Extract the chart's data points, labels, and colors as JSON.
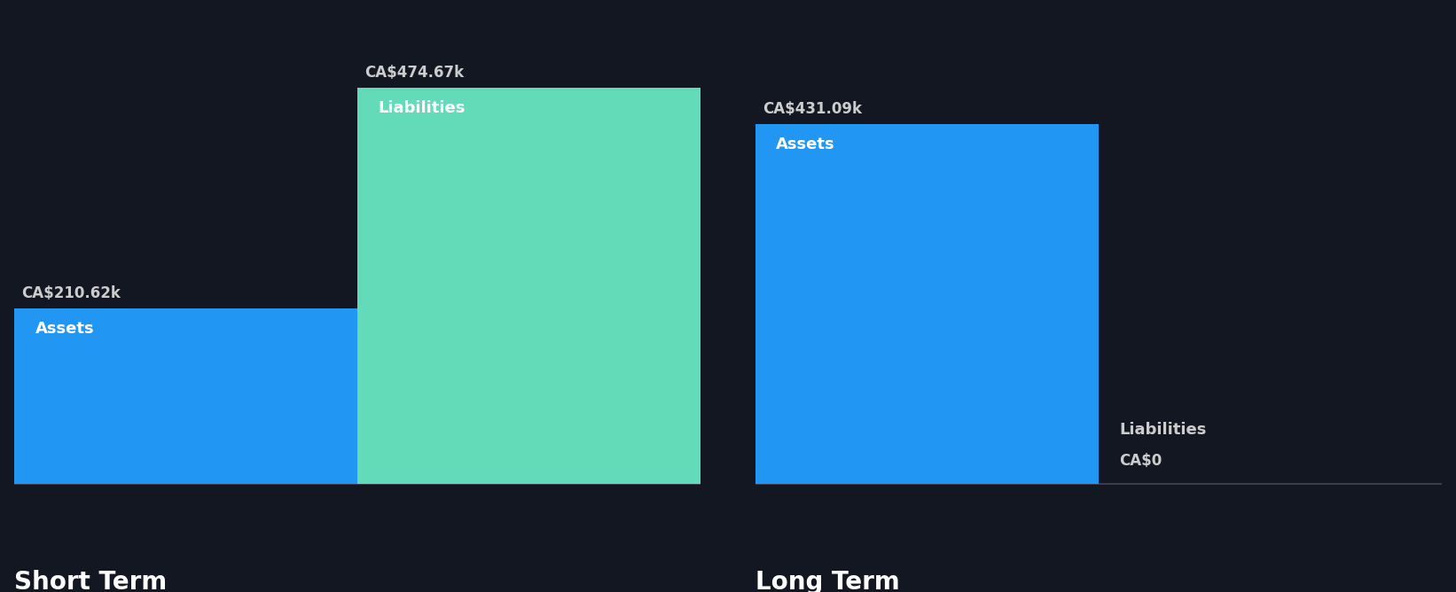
{
  "background_color": "#131722",
  "text_color": "#ffffff",
  "label_color": "#cccccc",
  "groups": [
    "Short Term",
    "Long Term"
  ],
  "values": {
    "Short Term": {
      "Assets": 210.62,
      "Liabilities": 474.67
    },
    "Long Term": {
      "Assets": 431.09,
      "Liabilities": 0.0
    }
  },
  "labels": {
    "Short Term": {
      "Assets": "CA$210.62k",
      "Liabilities": "CA$474.67k"
    },
    "Long Term": {
      "Assets": "CA$431.09k",
      "Liabilities": "CA$0"
    }
  },
  "bar_colors": {
    "Assets": "#2196f3",
    "Liabilities": "#64dbb8"
  },
  "group_label_fontsize": 20,
  "bar_label_fontsize": 13,
  "value_label_fontsize": 12,
  "ylim_max": 530
}
